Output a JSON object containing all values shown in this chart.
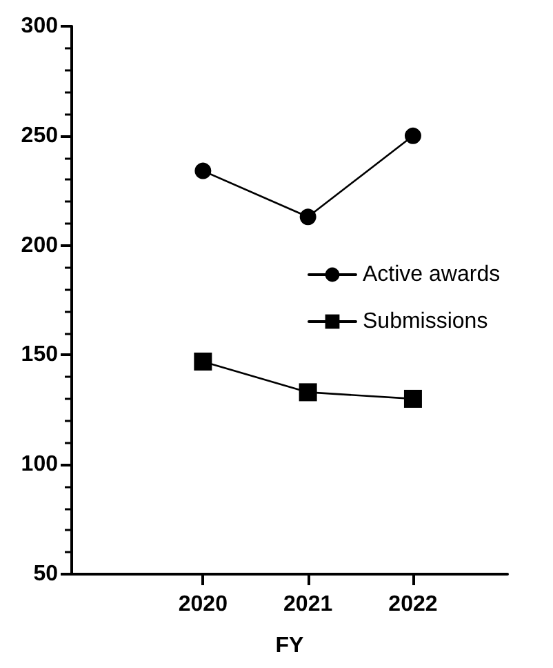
{
  "chart_data": {
    "type": "line",
    "xlabel": "FY",
    "x": [
      2020,
      2021,
      2022
    ],
    "xlim": [
      2018.75,
      2022.9
    ],
    "xticks": [
      2020,
      2021,
      2022
    ],
    "ylim": [
      50,
      300
    ],
    "yticks": [
      50,
      100,
      150,
      200,
      250,
      300
    ],
    "series": [
      {
        "name": "Active awards",
        "color": "#000000",
        "marker": "circle",
        "values": [
          234,
          213,
          250
        ]
      },
      {
        "name": "Submissions",
        "color": "#000000",
        "marker": "square",
        "values": [
          147,
          133,
          130
        ]
      }
    ],
    "legend": "right",
    "grid": false,
    "line_style": "solid"
  }
}
